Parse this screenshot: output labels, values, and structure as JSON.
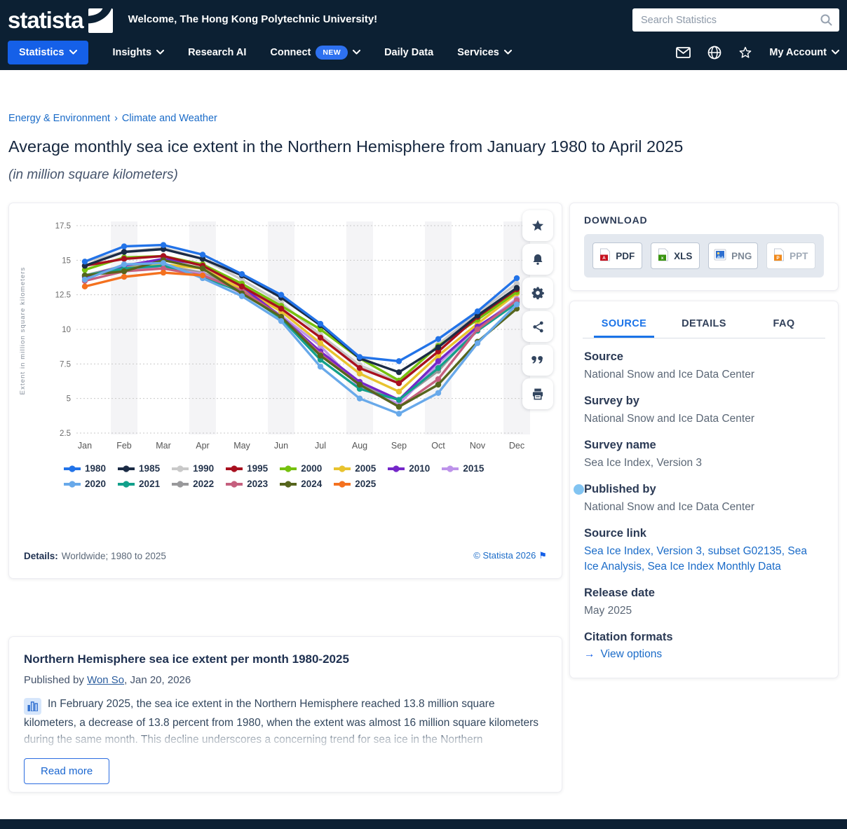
{
  "theme": {
    "header_bg": "#0c2033",
    "accent_blue": "#1560e8",
    "link_blue": "#1a6bc8",
    "active_tab_blue": "#1a73e8"
  },
  "header": {
    "logo_text": "statista",
    "welcome": "Welcome, The Hong Kong Polytechnic University!",
    "search_placeholder": "Search Statistics",
    "nav": {
      "statistics": "Statistics",
      "insights": "Insights",
      "research_ai": "Research AI",
      "connect": "Connect",
      "new_badge": "NEW",
      "daily_data": "Daily Data",
      "services": "Services",
      "my_account": "My Account"
    },
    "icons": [
      "mail-icon",
      "globe-icon",
      "star-icon",
      "chevron-down-icon"
    ]
  },
  "breadcrumb": {
    "part1": "Energy & Environment",
    "separator": "›",
    "part2": "Climate and Weather"
  },
  "page": {
    "title": "Average monthly sea ice extent in the Northern Hemisphere from January 1980 to April 2025",
    "subtitle": "(in million square kilometers)"
  },
  "chart_card": {
    "toolbar_icons": [
      "favorite-star-icon",
      "notification-bell-icon",
      "settings-gear-icon",
      "share-icon",
      "cite-quote-icon",
      "print-icon"
    ],
    "details_label": "Details:",
    "details_value": "Worldwide; 1980 to 2025",
    "copyright": "© Statista 2026",
    "flag_icon": "⚑"
  },
  "chart_data": {
    "type": "line",
    "title": "Average monthly sea ice extent in the Northern Hemisphere from January 1980 to April 2025",
    "xlabel": "",
    "ylabel": "Extent in million square kilometers",
    "x": [
      "Jan",
      "Feb",
      "Mar",
      "Apr",
      "May",
      "Jun",
      "Jul",
      "Aug",
      "Sep",
      "Oct",
      "Nov",
      "Dec"
    ],
    "ylim": [
      2.5,
      17.5
    ],
    "yticks": [
      2.5,
      5,
      7.5,
      10,
      12.5,
      15,
      17.5
    ],
    "grid": "horizontal-dotted, alternating vertical month bands",
    "legend_position": "bottom",
    "series": [
      {
        "name": "1980",
        "color": "#2273e8",
        "values": [
          14.9,
          16.0,
          16.1,
          15.4,
          14.0,
          12.5,
          10.4,
          8.0,
          7.7,
          9.3,
          11.3,
          13.7
        ]
      },
      {
        "name": "1985",
        "color": "#1b2b45",
        "values": [
          14.6,
          15.6,
          15.8,
          15.1,
          13.9,
          12.3,
          10.3,
          7.9,
          6.9,
          8.7,
          11.0,
          13.0
        ]
      },
      {
        "name": "1990",
        "color": "#c9c9c9",
        "values": [
          14.9,
          15.6,
          15.9,
          15.1,
          13.6,
          11.9,
          9.6,
          7.4,
          6.2,
          8.9,
          11.2,
          13.3
        ]
      },
      {
        "name": "1995",
        "color": "#a8101f",
        "values": [
          14.6,
          15.1,
          15.3,
          14.6,
          13.1,
          11.5,
          9.4,
          7.2,
          6.1,
          8.4,
          10.9,
          12.9
        ]
      },
      {
        "name": "2000",
        "color": "#76c10e",
        "values": [
          14.3,
          15.2,
          15.3,
          14.7,
          13.3,
          11.7,
          10.0,
          7.9,
          6.3,
          8.8,
          10.7,
          12.7
        ]
      },
      {
        "name": "2005",
        "color": "#e8c32e",
        "values": [
          13.9,
          14.4,
          14.7,
          14.4,
          12.9,
          11.3,
          9.0,
          6.8,
          5.5,
          8.1,
          10.4,
          12.6
        ]
      },
      {
        "name": "2010",
        "color": "#7527c9",
        "values": [
          13.8,
          14.6,
          15.1,
          14.7,
          13.1,
          10.9,
          8.4,
          6.2,
          4.9,
          7.7,
          10.2,
          12.0
        ]
      },
      {
        "name": "2015",
        "color": "#bd93ea",
        "values": [
          13.8,
          14.4,
          14.4,
          14.0,
          12.6,
          11.0,
          8.8,
          5.8,
          4.6,
          7.5,
          10.1,
          12.2
        ]
      },
      {
        "name": "2020",
        "color": "#68a9ea",
        "values": [
          13.6,
          14.7,
          14.8,
          13.7,
          12.4,
          10.6,
          7.3,
          5.0,
          3.9,
          5.4,
          9.0,
          11.8
        ]
      },
      {
        "name": "2021",
        "color": "#12a08b",
        "values": [
          13.9,
          14.4,
          14.6,
          13.8,
          12.7,
          10.8,
          7.8,
          5.7,
          4.9,
          7.2,
          9.9,
          11.9
        ]
      },
      {
        "name": "2022",
        "color": "#99999b",
        "values": [
          13.9,
          14.6,
          14.6,
          14.1,
          12.8,
          11.0,
          8.3,
          6.0,
          4.9,
          7.0,
          10.1,
          12.2
        ]
      },
      {
        "name": "2023",
        "color": "#c55f7e",
        "values": [
          13.5,
          14.2,
          14.4,
          13.9,
          12.8,
          10.9,
          8.2,
          6.0,
          4.4,
          6.4,
          10.0,
          12.1
        ]
      },
      {
        "name": "2024",
        "color": "#56651d",
        "values": [
          13.9,
          14.2,
          15.0,
          14.4,
          12.6,
          10.9,
          8.1,
          6.0,
          4.4,
          6.0,
          9.1,
          11.5
        ]
      },
      {
        "name": "2025",
        "color": "#f4711f",
        "values": [
          13.1,
          13.8,
          14.1,
          13.9,
          null,
          null,
          null,
          null,
          null,
          null,
          null,
          null
        ]
      }
    ]
  },
  "download": {
    "heading": "DOWNLOAD",
    "buttons": [
      {
        "label": "PDF",
        "icon": "pdf-file-icon",
        "color": "#c6121f",
        "variant": "default"
      },
      {
        "label": "XLS",
        "icon": "xls-file-icon",
        "color": "#3a9410",
        "variant": "default"
      },
      {
        "label": "PNG",
        "icon": "png-image-icon",
        "color": "#2e6fd0",
        "variant": "muted"
      },
      {
        "label": "PPT",
        "icon": "ppt-file-icon",
        "color": "#f08a1d",
        "variant": "disabled"
      }
    ]
  },
  "source_panel": {
    "tabs": [
      {
        "label": "SOURCE",
        "active": true
      },
      {
        "label": "DETAILS",
        "active": false
      },
      {
        "label": "FAQ",
        "active": false
      }
    ],
    "sections": [
      {
        "heading": "Source",
        "value": "National Snow and Ice Data Center",
        "is_link": false
      },
      {
        "heading": "Survey by",
        "value": "National Snow and Ice Data Center",
        "is_link": false
      },
      {
        "heading": "Survey name",
        "value": "Sea Ice Index, Version 3",
        "is_link": false
      },
      {
        "heading": "Published by",
        "value": "National Snow and Ice Data Center",
        "is_link": false
      },
      {
        "heading": "Source link",
        "value": "Sea Ice Index, Version 3, subset G02135, Sea Ice Analysis, Sea Ice Index Monthly Data",
        "is_link": true
      },
      {
        "heading": "Release date",
        "value": "May 2025",
        "is_link": false
      }
    ],
    "citation": {
      "heading": "Citation formats",
      "arrow": "→",
      "link_label": "View options"
    }
  },
  "description_card": {
    "title": "Northern Hemisphere sea ice extent per month 1980-2025",
    "published_prefix": "Published by ",
    "author": "Won So",
    "published_suffix": ", Jan 20, 2026",
    "body": "In February 2025, the sea ice extent in the Northern Hemisphere reached 13.8 million square kilometers, a decrease of 13.8 percent from 1980, when the extent was almost 16 million square kilometers during the same month. This decline underscores a concerning trend for sea ice in the Northern",
    "read_more": "Read more",
    "chart_icon": "bar-chart-icon"
  }
}
